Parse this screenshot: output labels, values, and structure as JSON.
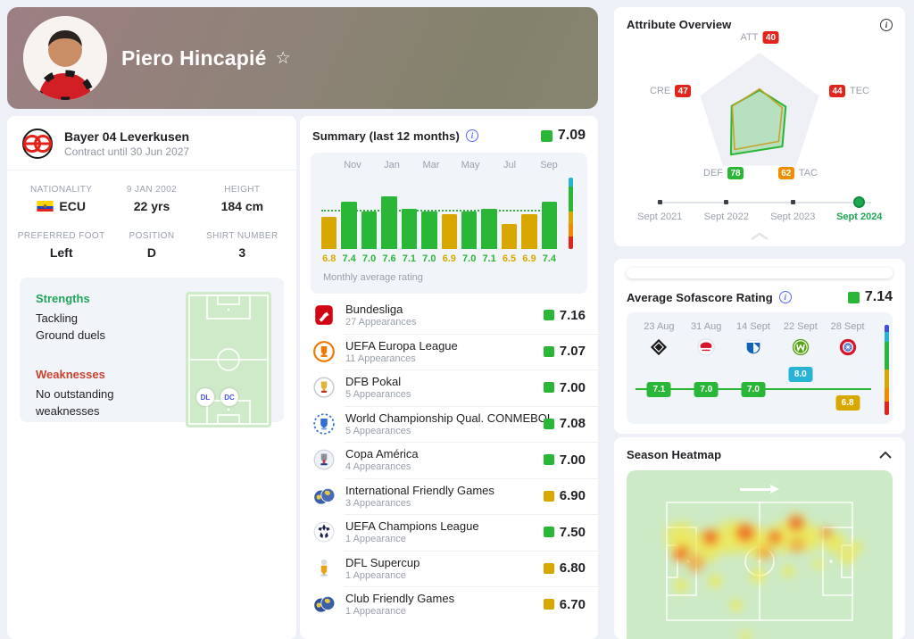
{
  "player_header": {
    "name": "Piero Hincapié",
    "star_icon": "star-outline"
  },
  "profile": {
    "team_name": "Bayer 04 Leverkusen",
    "contract": "Contract until 30 Jun 2027",
    "facts": [
      {
        "label": "NATIONALITY",
        "value": "ECU",
        "icon": "ecuador-flag"
      },
      {
        "label": "9 JAN 2002",
        "value": "22 yrs"
      },
      {
        "label": "HEIGHT",
        "value": "184 cm"
      },
      {
        "label": "PREFERRED FOOT",
        "value": "Left"
      },
      {
        "label": "POSITION",
        "value": "D"
      },
      {
        "label": "SHIRT NUMBER",
        "value": "3"
      }
    ],
    "strengths_title": "Strengths",
    "strengths": [
      "Tackling",
      "Ground duels"
    ],
    "weaknesses_title": "Weaknesses",
    "weaknesses": [
      "No outstanding weaknesses"
    ],
    "position_badges": [
      "DL",
      "DC"
    ]
  },
  "summary": {
    "title": "Summary (last 12 months)",
    "overall_rating": "7.09",
    "caption": "Monthly average rating",
    "tournaments": [
      {
        "name": "Bundesliga",
        "appearances": "27 Appearances",
        "rating": "7.16",
        "color": "green",
        "icon": "bundesliga"
      },
      {
        "name": "UEFA Europa League",
        "appearances": "11 Appearances",
        "rating": "7.07",
        "color": "green",
        "icon": "europa-league"
      },
      {
        "name": "DFB Pokal",
        "appearances": "5 Appearances",
        "rating": "7.00",
        "color": "green",
        "icon": "dfb-pokal"
      },
      {
        "name": "World Championship Qual. CONMEBOL",
        "appearances": "5 Appearances",
        "rating": "7.08",
        "color": "green",
        "icon": "conmebol-qual"
      },
      {
        "name": "Copa América",
        "appearances": "4 Appearances",
        "rating": "7.00",
        "color": "green",
        "icon": "copa-america"
      },
      {
        "name": "International Friendly Games",
        "appearances": "3 Appearances",
        "rating": "6.90",
        "color": "yellow",
        "icon": "friendly-games"
      },
      {
        "name": "UEFA Champions League",
        "appearances": "1 Appearance",
        "rating": "7.50",
        "color": "green",
        "icon": "champions-league"
      },
      {
        "name": "DFL Supercup",
        "appearances": "1 Appearance",
        "rating": "6.80",
        "color": "yellow",
        "icon": "dfl-supercup"
      },
      {
        "name": "Club Friendly Games",
        "appearances": "1 Appearance",
        "rating": "6.70",
        "color": "yellow",
        "icon": "club-friendly"
      }
    ]
  },
  "attribute_overview": {
    "title": "Attribute Overview",
    "seasons": [
      {
        "label": "Sept 2021",
        "active": false
      },
      {
        "label": "Sept 2022",
        "active": false
      },
      {
        "label": "Sept 2023",
        "active": false
      },
      {
        "label": "Sept 2024",
        "active": true
      }
    ]
  },
  "average_rating": {
    "title": "Average Sofascore Rating",
    "value": "7.14"
  },
  "season_heatmap": {
    "title": "Season Heatmap"
  },
  "chart_data": [
    {
      "id": "monthly_average_rating",
      "type": "bar",
      "title": "Summary (last 12 months)",
      "month_labels": [
        "Nov",
        "Jan",
        "Mar",
        "May",
        "Jul",
        "Sep"
      ],
      "values": [
        6.8,
        7.4,
        7.0,
        7.6,
        7.1,
        7.0,
        6.9,
        7.0,
        7.1,
        6.5,
        6.9,
        7.4
      ],
      "ylim": [
        5.5,
        8.35
      ],
      "reference_line": 7.0,
      "scale_ticks": [
        8,
        7,
        6
      ],
      "color_rule": "green if value >= 7.0 else yellow",
      "caption": "Monthly average rating"
    },
    {
      "id": "attribute_radar",
      "type": "radar",
      "axes": [
        "ATT",
        "TEC",
        "TAC",
        "DEF",
        "CRE"
      ],
      "values": [
        40,
        44,
        62,
        78,
        47
      ],
      "comparison_values": [
        42,
        38,
        52,
        68,
        46
      ],
      "max": 100
    },
    {
      "id": "recent_match_ratings",
      "type": "line",
      "x": [
        "23 Aug",
        "31 Aug",
        "14 Sept",
        "22 Sept",
        "28 Sept"
      ],
      "opponent_logos": [
        "borussia-moenchengladbach",
        "rb-leipzig",
        "hoffenheim",
        "wolfsburg",
        "bayern-munich"
      ],
      "values": [
        7.1,
        7.0,
        7.0,
        8.0,
        6.8
      ],
      "average": 7.14
    },
    {
      "id": "season_heatmap",
      "type": "heatmap",
      "description": "player activity heatmap, attacking direction left-to-right, activity concentrated on left flank",
      "hotspots": [
        [
          20.5,
          37.6,
          20,
          1
        ],
        [
          30.1,
          43.0,
          20,
          1
        ],
        [
          39.7,
          37.6,
          22,
          1
        ],
        [
          49.4,
          40.3,
          20,
          1
        ],
        [
          59.0,
          37.6,
          20,
          1
        ],
        [
          68.6,
          37.6,
          18,
          1
        ],
        [
          78.2,
          40.3,
          14,
          1
        ],
        [
          83.0,
          48.4,
          10,
          1
        ],
        [
          20.5,
          64.5,
          9,
          1
        ],
        [
          33.3,
          61.8,
          9,
          1
        ],
        [
          41.3,
          75.3,
          8,
          1
        ],
        [
          49.4,
          59.1,
          10,
          1
        ],
        [
          60.6,
          56.5,
          8,
          1
        ],
        [
          71.8,
          52.7,
          7,
          1
        ],
        [
          44.6,
          93.0,
          7,
          1
        ],
        [
          86.2,
          43.0,
          8,
          1
        ],
        [
          26.0,
          52.0,
          12,
          2
        ],
        [
          52.0,
          46.0,
          10,
          2
        ],
        [
          64.0,
          42.0,
          10,
          2
        ],
        [
          21.2,
          45.7,
          10,
          3
        ],
        [
          31.7,
          37.6,
          12,
          3
        ],
        [
          44.6,
          35.0,
          14,
          3
        ],
        [
          55.8,
          37.6,
          10,
          3
        ],
        [
          63.8,
          29.6,
          12,
          3
        ],
        [
          75.0,
          35.0,
          7,
          3
        ],
        [
          19.9,
          47.3,
          9,
          3
        ]
      ]
    }
  ],
  "colors": {
    "green": "#2ab737",
    "yellow": "#d9a800",
    "teal": "#28b2d6",
    "red": "#e0261c",
    "orange": "#ef8c00"
  }
}
